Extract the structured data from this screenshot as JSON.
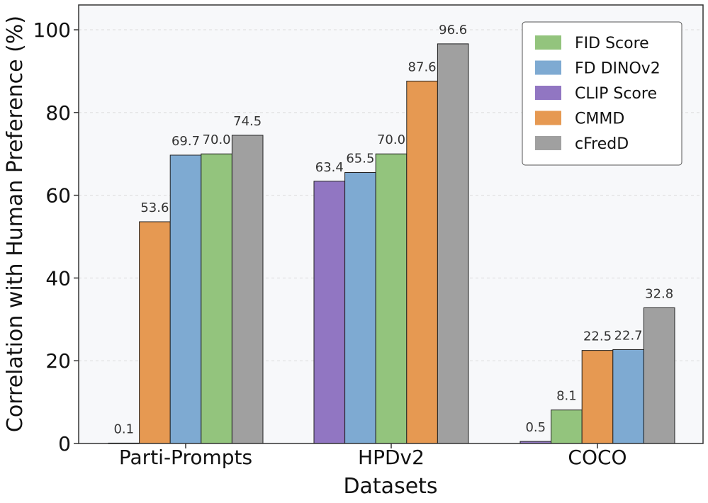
{
  "chart_data": {
    "type": "bar",
    "xlabel": "Datasets",
    "ylabel": "Correlation with Human Preference (%)",
    "ylim": [
      0,
      106
    ],
    "yticks": [
      0,
      20,
      40,
      60,
      80,
      100
    ],
    "grid": "horizontal dashed",
    "legend_position": "top-right",
    "legend": [
      {
        "name": "FID Score",
        "color": "#93c47d"
      },
      {
        "name": "FD DINOv2",
        "color": "#7eaad2"
      },
      {
        "name": "CLIP Score",
        "color": "#9176c2"
      },
      {
        "name": "CMMD",
        "color": "#e69952"
      },
      {
        "name": "cFredD",
        "color": "#a0a0a0"
      }
    ],
    "groups": [
      {
        "category": "Parti-Prompts",
        "bars": [
          {
            "series": "CLIP Score",
            "value": 0.1,
            "label": "0.1"
          },
          {
            "series": "CMMD",
            "value": 53.6,
            "label": "53.6"
          },
          {
            "series": "FD DINOv2",
            "value": 69.7,
            "label": "69.7"
          },
          {
            "series": "FID Score",
            "value": 70.0,
            "label": "70.0"
          },
          {
            "series": "cFredD",
            "value": 74.5,
            "label": "74.5"
          }
        ]
      },
      {
        "category": "HPDv2",
        "bars": [
          {
            "series": "CLIP Score",
            "value": 63.4,
            "label": "63.4"
          },
          {
            "series": "FD DINOv2",
            "value": 65.5,
            "label": "65.5"
          },
          {
            "series": "FID Score",
            "value": 70.0,
            "label": "70.0"
          },
          {
            "series": "CMMD",
            "value": 87.6,
            "label": "87.6"
          },
          {
            "series": "cFredD",
            "value": 96.6,
            "label": "96.6"
          }
        ]
      },
      {
        "category": "COCO",
        "bars": [
          {
            "series": "CLIP Score",
            "value": 0.5,
            "label": "0.5"
          },
          {
            "series": "FID Score",
            "value": 8.1,
            "label": "8.1"
          },
          {
            "series": "CMMD",
            "value": 22.5,
            "label": "22.5"
          },
          {
            "series": "FD DINOv2",
            "value": 22.7,
            "label": "22.7"
          },
          {
            "series": "cFredD",
            "value": 32.8,
            "label": "32.8"
          }
        ]
      }
    ]
  }
}
